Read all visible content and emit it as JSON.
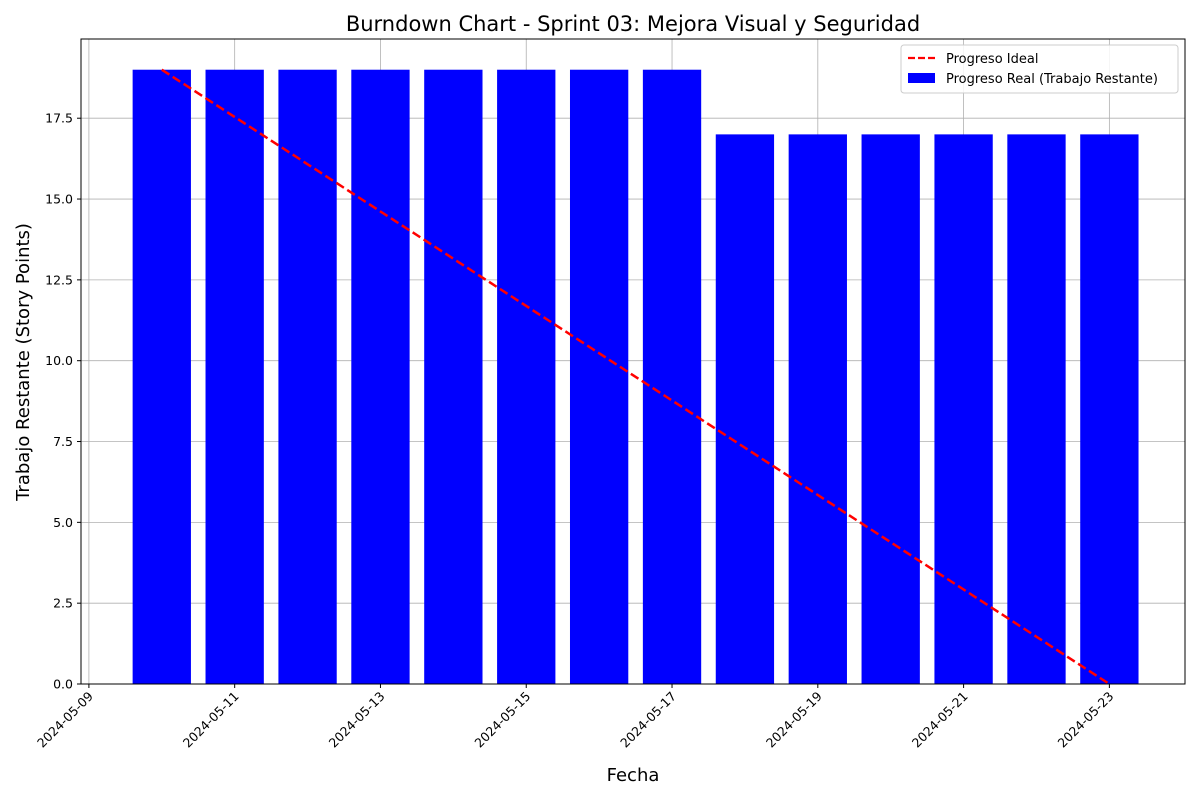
{
  "chart_data": {
    "type": "bar",
    "title": "Burndown Chart - Sprint 03: Mejora Visual y Seguridad",
    "xlabel": "Fecha",
    "ylabel": "Trabajo Restante (Story Points)",
    "x_ticks": [
      "2024-05-09",
      "2024-05-11",
      "2024-05-13",
      "2024-05-15",
      "2024-05-17",
      "2024-05-19",
      "2024-05-21",
      "2024-05-23"
    ],
    "y_ticks": [
      "0.0",
      "2.5",
      "5.0",
      "7.5",
      "10.0",
      "12.5",
      "15.0",
      "17.5"
    ],
    "xlim": [
      "2024-05-08T21:24",
      "2024-05-24T00:54"
    ],
    "ylim": [
      0,
      19.95
    ],
    "grid": true,
    "legend_position": "top-right",
    "categories": [
      "2024-05-10",
      "2024-05-11",
      "2024-05-12",
      "2024-05-13",
      "2024-05-14",
      "2024-05-15",
      "2024-05-16",
      "2024-05-17",
      "2024-05-18",
      "2024-05-19",
      "2024-05-20",
      "2024-05-21",
      "2024-05-22",
      "2024-05-23"
    ],
    "series": [
      {
        "name": "Progreso Real (Trabajo Restante)",
        "type": "bar",
        "color": "#0000ff",
        "values": [
          19,
          19,
          19,
          19,
          19,
          19,
          19,
          19,
          17,
          17,
          17,
          17,
          17,
          17
        ]
      },
      {
        "name": "Progreso Ideal",
        "type": "line",
        "style": "dashed",
        "color": "#ff0000",
        "x": [
          "2024-05-10",
          "2024-05-23"
        ],
        "values": [
          19,
          0
        ]
      }
    ]
  }
}
